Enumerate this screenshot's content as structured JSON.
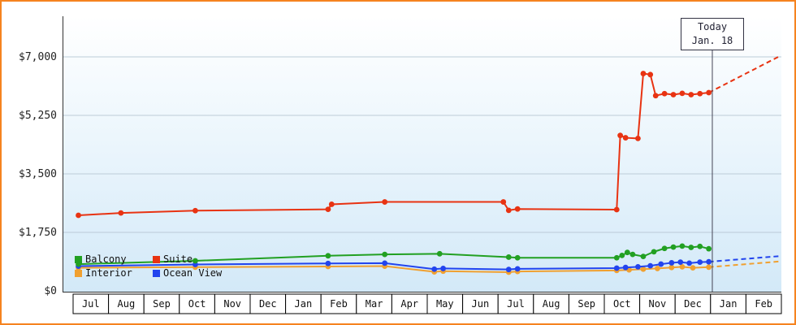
{
  "legend": [
    {
      "key": "balcony",
      "label": "Balcony",
      "color": "#22a022"
    },
    {
      "key": "suite",
      "label": "Suite",
      "color": "#e83312"
    },
    {
      "key": "interior",
      "label": "Interior",
      "color": "#f0a030"
    },
    {
      "key": "ocean_view",
      "label": "Ocean View",
      "color": "#2244ee"
    }
  ],
  "chart_data": {
    "type": "line",
    "title": "",
    "xlabel": "",
    "ylabel": "",
    "ylim": [
      0,
      7400
    ],
    "grid": true,
    "legend_position": "bottom-left-inside",
    "months": [
      "Jul",
      "Aug",
      "Sep",
      "Oct",
      "Nov",
      "Dec",
      "Jan",
      "Feb",
      "Mar",
      "Apr",
      "May",
      "Jun",
      "Jul",
      "Aug",
      "Sep",
      "Oct",
      "Nov",
      "Dec",
      "Jan",
      "Feb"
    ],
    "y_ticks": [
      {
        "label": "$0",
        "value": 0
      },
      {
        "label": "$1,750",
        "value": 1750
      },
      {
        "label": "$3,500",
        "value": 3500
      },
      {
        "label": "$5,250",
        "value": 5250
      },
      {
        "label": "$7,000",
        "value": 7000
      }
    ],
    "today": {
      "label_line1": "Today",
      "label_line2": "Jan. 18",
      "month_unit": 18.05
    },
    "series": [
      {
        "name": "Interior",
        "key": "interior",
        "color": "#f0a030",
        "points": [
          [
            0.15,
            690
          ],
          [
            3.45,
            710
          ],
          [
            7.2,
            730
          ],
          [
            8.8,
            740
          ],
          [
            10.2,
            570
          ],
          [
            10.45,
            590
          ],
          [
            12.3,
            560
          ],
          [
            12.55,
            580
          ],
          [
            15.35,
            610
          ],
          [
            15.7,
            630
          ],
          [
            16.1,
            650
          ],
          [
            16.5,
            670
          ],
          [
            16.9,
            700
          ],
          [
            17.2,
            720
          ],
          [
            17.5,
            690
          ],
          [
            17.95,
            710
          ]
        ],
        "forecast": [
          [
            17.95,
            710
          ],
          [
            19.95,
            880
          ]
        ]
      },
      {
        "name": "Ocean View",
        "key": "ocean_view",
        "color": "#2244ee",
        "points": [
          [
            0.15,
            740
          ],
          [
            3.45,
            790
          ],
          [
            7.2,
            820
          ],
          [
            8.8,
            830
          ],
          [
            10.2,
            650
          ],
          [
            10.45,
            670
          ],
          [
            12.3,
            640
          ],
          [
            12.55,
            660
          ],
          [
            15.35,
            680
          ],
          [
            15.6,
            700
          ],
          [
            15.95,
            720
          ],
          [
            16.3,
            750
          ],
          [
            16.6,
            800
          ],
          [
            16.9,
            840
          ],
          [
            17.15,
            860
          ],
          [
            17.4,
            830
          ],
          [
            17.7,
            860
          ],
          [
            17.95,
            870
          ]
        ],
        "forecast": [
          [
            17.95,
            870
          ],
          [
            19.95,
            1040
          ]
        ]
      },
      {
        "name": "Balcony",
        "key": "balcony",
        "color": "#22a022",
        "points": [
          [
            0.15,
            800
          ],
          [
            3.45,
            900
          ],
          [
            7.2,
            1050
          ],
          [
            8.8,
            1090
          ],
          [
            10.35,
            1110
          ],
          [
            12.3,
            1010
          ],
          [
            12.55,
            990
          ],
          [
            15.35,
            990
          ],
          [
            15.5,
            1060
          ],
          [
            15.65,
            1150
          ],
          [
            15.8,
            1090
          ],
          [
            16.1,
            1030
          ],
          [
            16.4,
            1170
          ],
          [
            16.7,
            1270
          ],
          [
            16.95,
            1310
          ],
          [
            17.2,
            1340
          ],
          [
            17.45,
            1300
          ],
          [
            17.7,
            1330
          ],
          [
            17.95,
            1260
          ]
        ],
        "forecast": null
      },
      {
        "name": "Suite",
        "key": "suite",
        "color": "#e83312",
        "points": [
          [
            0.15,
            2260
          ],
          [
            1.35,
            2330
          ],
          [
            3.45,
            2400
          ],
          [
            7.2,
            2440
          ],
          [
            7.3,
            2590
          ],
          [
            8.8,
            2660
          ],
          [
            12.15,
            2660
          ],
          [
            12.3,
            2410
          ],
          [
            12.55,
            2450
          ],
          [
            15.35,
            2430
          ],
          [
            15.45,
            4650
          ],
          [
            15.6,
            4580
          ],
          [
            15.95,
            4560
          ],
          [
            16.1,
            6500
          ],
          [
            16.3,
            6470
          ],
          [
            16.45,
            5840
          ],
          [
            16.7,
            5900
          ],
          [
            16.95,
            5870
          ],
          [
            17.2,
            5910
          ],
          [
            17.45,
            5870
          ],
          [
            17.7,
            5900
          ],
          [
            17.95,
            5930
          ]
        ],
        "forecast": [
          [
            17.95,
            5930
          ],
          [
            19.95,
            7020
          ]
        ]
      }
    ]
  }
}
